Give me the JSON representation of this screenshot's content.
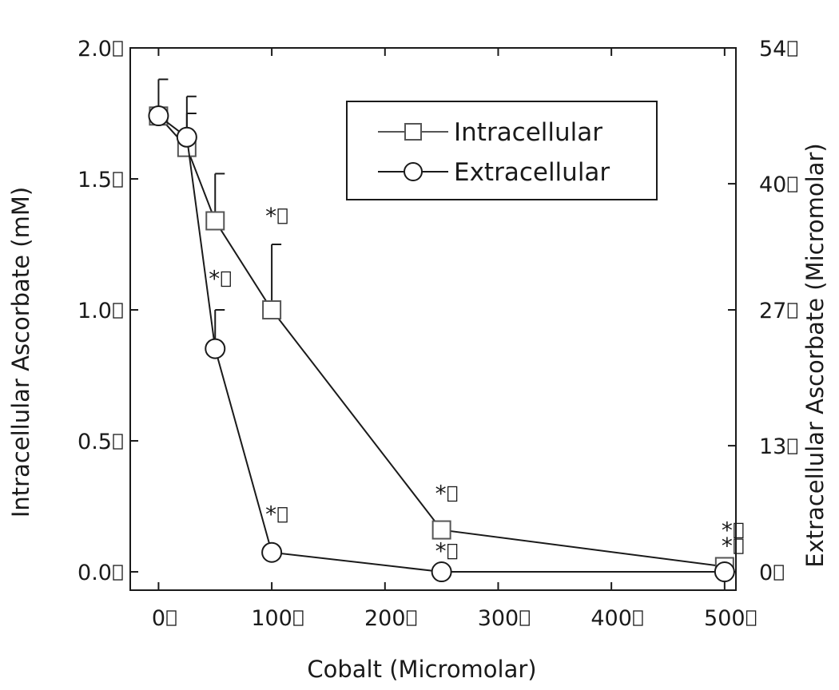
{
  "chart_data": {
    "type": "line",
    "title": "",
    "xlabel": "Cobalt (Micromolar)",
    "ylabel_left": "Intracellular Ascorbate (mM)",
    "ylabel_right": "Extracellular Ascorbate (Micromolar)",
    "xlim": [
      -25,
      510
    ],
    "ylim_left": [
      -0.07,
      2.0
    ],
    "ylim_right": [
      -1.89,
      54
    ],
    "x_ticks": [
      "0",
      "100",
      "200",
      "300",
      "400",
      "500"
    ],
    "y_ticks_left": [
      "0.0",
      "0.5",
      "1.0",
      "1.5",
      "2.0"
    ],
    "y_ticks_right": [
      "0",
      "13",
      "27",
      "40",
      "54"
    ],
    "legend": {
      "position": "top-right"
    },
    "series": [
      {
        "name": "Intracellular",
        "axis": "left",
        "marker": "square",
        "x": [
          0,
          25,
          50,
          100,
          250,
          500
        ],
        "y": [
          1.74,
          1.62,
          1.34,
          1.0,
          0.16,
          0.02
        ],
        "err": [
          0.14,
          0.13,
          0.18,
          0.25,
          null,
          null
        ]
      },
      {
        "name": "Extracellular",
        "axis": "right",
        "marker": "circle",
        "x": [
          0,
          25,
          50,
          100,
          250,
          500
        ],
        "y": [
          47.0,
          44.8,
          23.0,
          2.0,
          0,
          0
        ],
        "err": [
          null,
          4.2,
          4.0,
          null,
          null,
          null
        ]
      }
    ],
    "annotations": [
      {
        "text": "*",
        "x": 100,
        "y_left": 1.33
      },
      {
        "text": "*",
        "x": 50,
        "y_left": 1.09
      },
      {
        "text": "*",
        "x": 100,
        "y_left": 0.19
      },
      {
        "text": "*",
        "x": 250,
        "y_left": 0.27
      },
      {
        "text": "*",
        "x": 250,
        "y_left": 0.05
      },
      {
        "text": "*",
        "x": 500,
        "y_left": 0.13
      },
      {
        "text": "*",
        "x": 500,
        "y_left": 0.07
      }
    ]
  }
}
